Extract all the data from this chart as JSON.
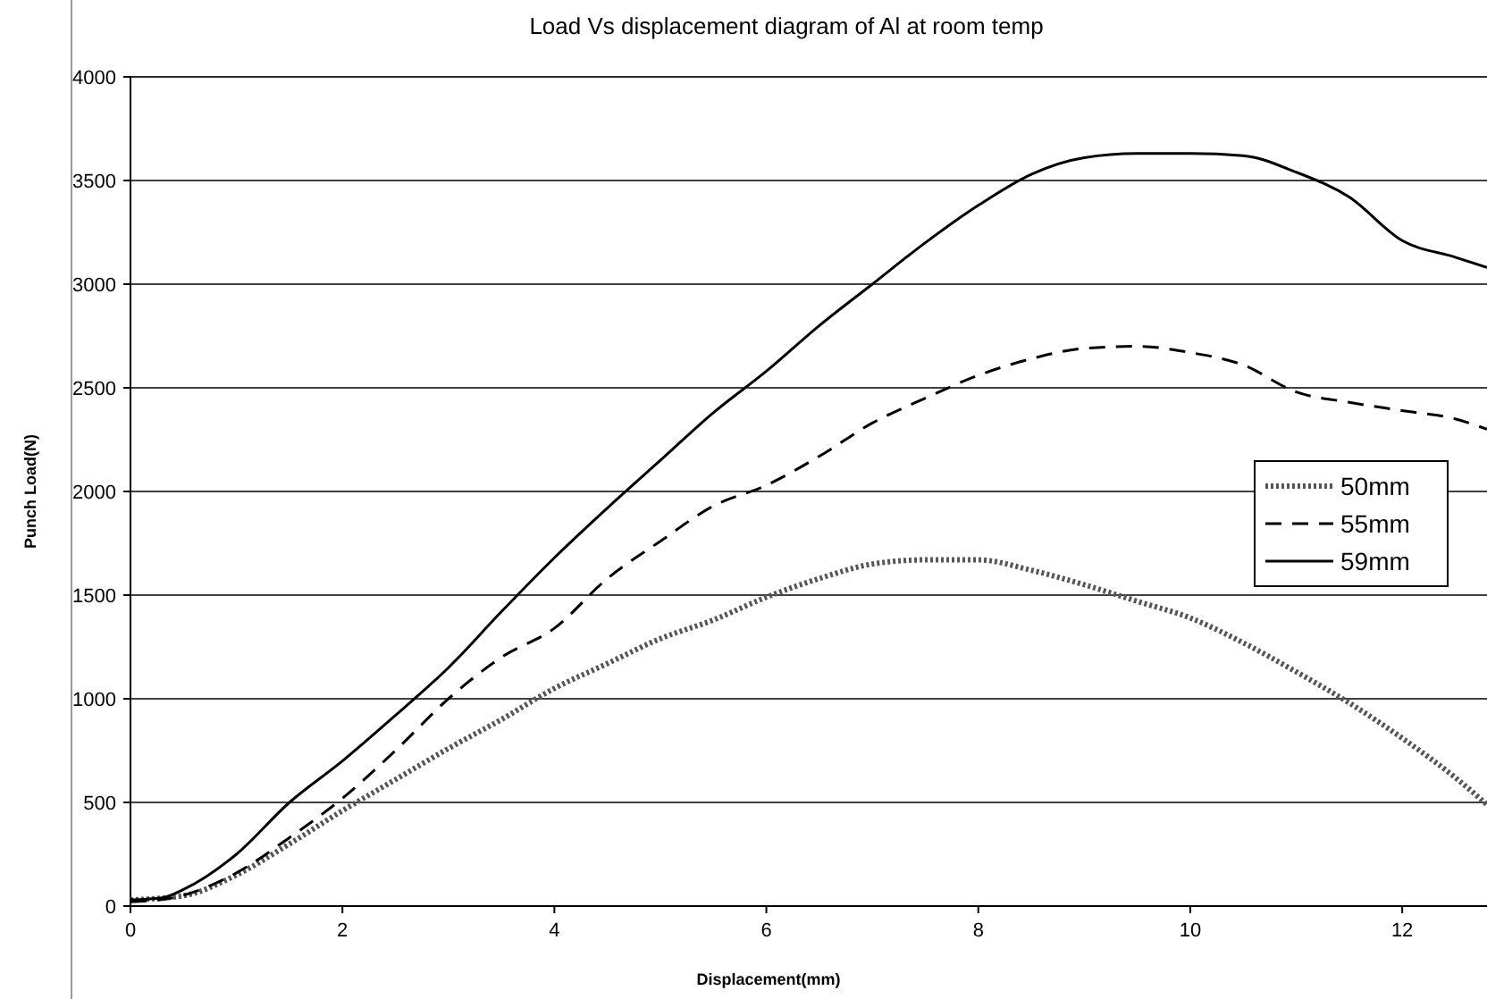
{
  "chart_data": {
    "type": "line",
    "title": "Load Vs displacement diagram of Al at room temp",
    "xlabel": "Displacement(mm)",
    "ylabel": "Punch Load(N)",
    "xlim": [
      0,
      12.8
    ],
    "xticks": [
      0,
      2,
      4,
      6,
      8,
      10,
      12
    ],
    "ylim": [
      0,
      4000
    ],
    "yticks": [
      0,
      500,
      1000,
      1500,
      2000,
      2500,
      3000,
      3500,
      4000
    ],
    "grid": "y",
    "legend": "right",
    "series": [
      {
        "name": "50mm",
        "color": "#555555",
        "line_style": "dotted",
        "x": [
          0,
          0.5,
          1,
          1.5,
          2,
          2.5,
          3,
          3.5,
          4,
          4.5,
          5,
          5.5,
          6,
          6.5,
          7,
          7.5,
          8,
          8.5,
          9,
          9.5,
          10,
          10.5,
          11,
          11.5,
          12,
          12.5,
          12.8
        ],
        "values": [
          30,
          50,
          150,
          300,
          460,
          610,
          760,
          900,
          1050,
          1170,
          1290,
          1380,
          1490,
          1580,
          1650,
          1670,
          1670,
          1620,
          1550,
          1470,
          1390,
          1270,
          1130,
          980,
          810,
          620,
          490
        ]
      },
      {
        "name": "55mm",
        "color": "#000000",
        "line_style": "dashed",
        "x": [
          0,
          0.4,
          1,
          1.5,
          2,
          2.5,
          3,
          3.5,
          4,
          4.5,
          5,
          5.5,
          6,
          6.5,
          7,
          7.5,
          8,
          8.5,
          9,
          9.5,
          10,
          10.5,
          11,
          11.5,
          12,
          12.5,
          12.8
        ],
        "values": [
          20,
          40,
          160,
          330,
          520,
          750,
          1000,
          1200,
          1340,
          1580,
          1760,
          1930,
          2030,
          2170,
          2330,
          2450,
          2560,
          2640,
          2690,
          2700,
          2670,
          2610,
          2480,
          2430,
          2390,
          2350,
          2300
        ]
      },
      {
        "name": "59mm",
        "color": "#000000",
        "line_style": "solid",
        "x": [
          0,
          0.3,
          0.5,
          1,
          1.5,
          2,
          2.5,
          3,
          3.5,
          4,
          4.5,
          5,
          5.5,
          6,
          6.5,
          7,
          7.5,
          8,
          8.5,
          9,
          9.5,
          10,
          10.5,
          11,
          11.5,
          12,
          12.5,
          12.8
        ],
        "values": [
          30,
          40,
          80,
          250,
          500,
          700,
          920,
          1150,
          1420,
          1680,
          1920,
          2150,
          2380,
          2580,
          2800,
          3000,
          3200,
          3380,
          3530,
          3610,
          3630,
          3630,
          3620,
          3540,
          3420,
          3210,
          3130,
          3080
        ]
      }
    ]
  }
}
